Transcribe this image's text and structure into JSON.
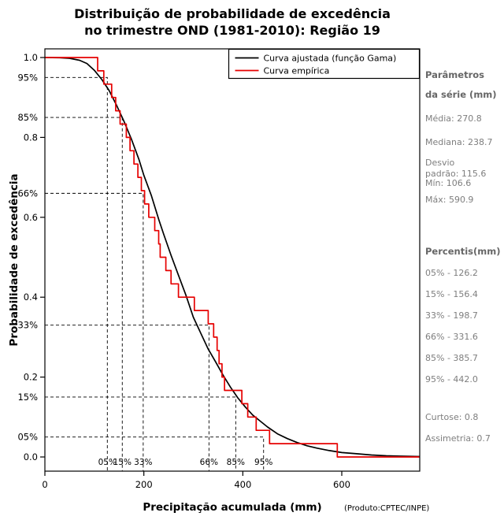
{
  "title": {
    "line1": "Distribuição de probabilidade de excedência",
    "line2": "no trimestre OND (1981-2010): Região 19"
  },
  "legend": [
    {
      "label": "Curva ajustada (função Gama)",
      "color": "#000000"
    },
    {
      "label": "Curva empírica",
      "color": "#e60000"
    }
  ],
  "axes": {
    "x_label": "Precipitação acumulada (mm)",
    "y_label": "Probabilidade de excedência"
  },
  "product_note": "(Produto:CPTEC/INPE)",
  "side_panel": {
    "params_header_line1": "Parâmetros",
    "params_header_line2": "da série (mm)",
    "stats": [
      "Média: 270.8",
      "Mediana: 238.7",
      "Desvio padrão: 115.6",
      "Mín: 106.6",
      "Máx: 590.9"
    ],
    "percentiles_header": "Percentis(mm)",
    "percentiles": [
      "05% - 126.2",
      "15% - 156.4",
      "33% - 198.7",
      "66% - 331.6",
      "85% - 385.7",
      "95% - 442.0"
    ],
    "shape_stats": [
      "Curtose: 0.8",
      "Assimetria: 0.7"
    ]
  },
  "chart_data": {
    "type": "line",
    "title": "Distribuição de probabilidade de excedência no trimestre OND (1981-2010): Região 19",
    "xlabel": "Precipitação acumulada (mm)",
    "ylabel": "Probabilidade de excedência",
    "xlim": [
      0,
      757
    ],
    "ylim": [
      0.0,
      1.0
    ],
    "x_ticks": [
      0,
      200,
      400,
      600
    ],
    "y_ticks": [
      0.0,
      0.2,
      0.4,
      0.6,
      0.8,
      1.0
    ],
    "grid": false,
    "legend_position": "top-right-inside",
    "series": [
      {
        "name": "Curva ajustada (função Gama)",
        "type": "line",
        "color": "#000000",
        "points": [
          [
            0,
            1.0
          ],
          [
            30,
            0.9995
          ],
          [
            50,
            0.998
          ],
          [
            70,
            0.993
          ],
          [
            85,
            0.985
          ],
          [
            100,
            0.968
          ],
          [
            115,
            0.945
          ],
          [
            130,
            0.917
          ],
          [
            145,
            0.88
          ],
          [
            160,
            0.84
          ],
          [
            175,
            0.795
          ],
          [
            190,
            0.745
          ],
          [
            200,
            0.705
          ],
          [
            215,
            0.655
          ],
          [
            230,
            0.595
          ],
          [
            240,
            0.558
          ],
          [
            255,
            0.505
          ],
          [
            270,
            0.455
          ],
          [
            285,
            0.405
          ],
          [
            300,
            0.35
          ],
          [
            315,
            0.31
          ],
          [
            330,
            0.27
          ],
          [
            345,
            0.238
          ],
          [
            360,
            0.205
          ],
          [
            375,
            0.175
          ],
          [
            390,
            0.148
          ],
          [
            405,
            0.125
          ],
          [
            420,
            0.105
          ],
          [
            435,
            0.09
          ],
          [
            450,
            0.075
          ],
          [
            470,
            0.058
          ],
          [
            490,
            0.046
          ],
          [
            510,
            0.036
          ],
          [
            530,
            0.028
          ],
          [
            550,
            0.022
          ],
          [
            575,
            0.016
          ],
          [
            600,
            0.011
          ],
          [
            630,
            0.008
          ],
          [
            660,
            0.005
          ],
          [
            690,
            0.003
          ],
          [
            720,
            0.002
          ],
          [
            757,
            0.001
          ]
        ]
      },
      {
        "name": "Curva empírica",
        "type": "step-exceedance",
        "color": "#e60000",
        "n": 30,
        "sorted_values_mm": [
          106.6,
          119,
          135,
          143,
          152,
          164.5,
          172,
          180,
          188,
          195,
          201.5,
          210,
          222,
          230,
          233,
          244.4,
          255,
          270,
          302,
          330,
          341,
          348,
          352,
          358,
          363,
          398,
          410,
          427,
          454,
          590.9
        ]
      }
    ],
    "percentile_guides": [
      {
        "percentile_label": "05%",
        "exceedance_label": "95%",
        "x_mm": 126.2,
        "exceedance": 0.95
      },
      {
        "percentile_label": "15%",
        "exceedance_label": "85%",
        "x_mm": 156.4,
        "exceedance": 0.85
      },
      {
        "percentile_label": "33%",
        "exceedance_label": "66%",
        "x_mm": 198.7,
        "exceedance": 0.66
      },
      {
        "percentile_label": "66%",
        "exceedance_label": "33%",
        "x_mm": 331.6,
        "exceedance": 0.33
      },
      {
        "percentile_label": "85%",
        "exceedance_label": "15%",
        "x_mm": 385.7,
        "exceedance": 0.15
      },
      {
        "percentile_label": "95%",
        "exceedance_label": "05%",
        "x_mm": 442.0,
        "exceedance": 0.05
      }
    ]
  }
}
